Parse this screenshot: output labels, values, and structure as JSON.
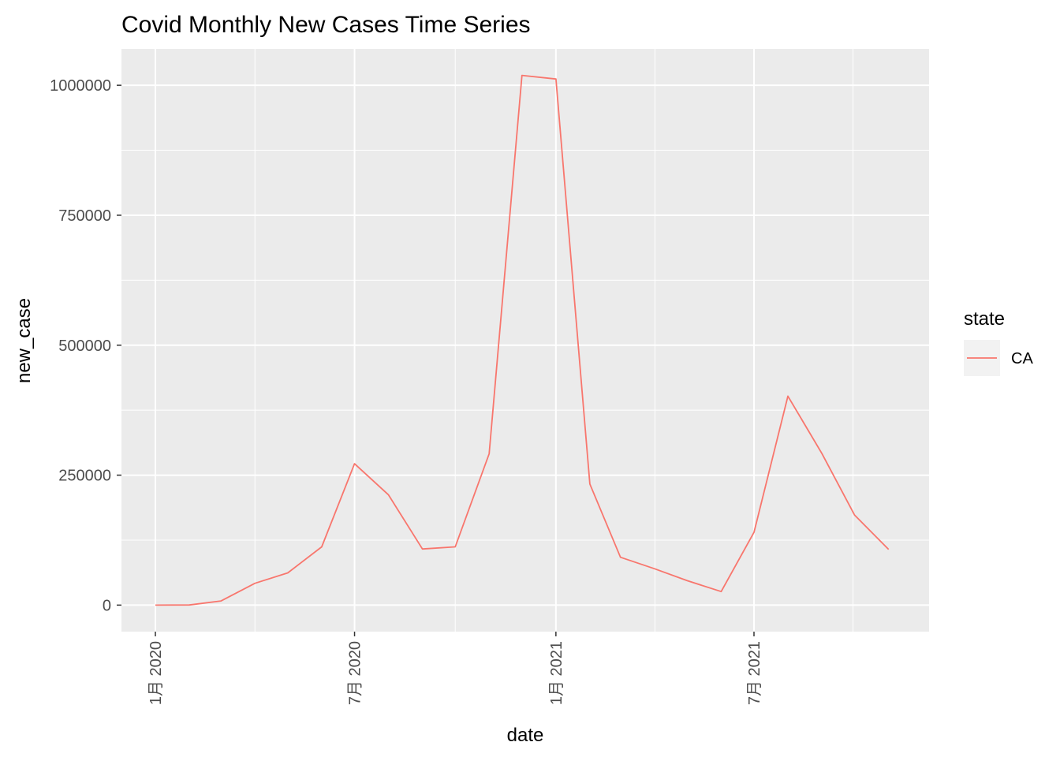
{
  "chart_data": {
    "type": "line",
    "title": "Covid Monthly New Cases Time Series",
    "xlabel": "date",
    "ylabel": "new_case",
    "x_tick_labels": [
      "1月 2020",
      "7月 2020",
      "1月 2021",
      "7月 2021"
    ],
    "x_tick_dates": [
      "2020-01-01",
      "2020-07-01",
      "2021-01-01",
      "2021-07-01"
    ],
    "y_ticks": [
      0,
      250000,
      500000,
      750000,
      1000000
    ],
    "y_tick_labels": [
      "0",
      "250000",
      "500000",
      "750000",
      "1000000"
    ],
    "xlim": [
      "2019-12-01",
      "2021-12-08"
    ],
    "ylim": [
      -51000,
      1070000
    ],
    "grid": true,
    "legend": {
      "title": "state",
      "position": "right"
    },
    "series": [
      {
        "name": "CA",
        "color": "#F8766D",
        "points": [
          {
            "x": "2020-01-01",
            "y": 0
          },
          {
            "x": "2020-02-01",
            "y": 200
          },
          {
            "x": "2020-03-01",
            "y": 8000
          },
          {
            "x": "2020-04-01",
            "y": 42000
          },
          {
            "x": "2020-05-01",
            "y": 62000
          },
          {
            "x": "2020-06-01",
            "y": 112000
          },
          {
            "x": "2020-07-01",
            "y": 272000
          },
          {
            "x": "2020-08-01",
            "y": 212000
          },
          {
            "x": "2020-09-01",
            "y": 108000
          },
          {
            "x": "2020-10-01",
            "y": 112000
          },
          {
            "x": "2020-11-01",
            "y": 291000
          },
          {
            "x": "2020-12-01",
            "y": 1019000
          },
          {
            "x": "2021-01-01",
            "y": 1012000
          },
          {
            "x": "2021-02-01",
            "y": 233000
          },
          {
            "x": "2021-03-01",
            "y": 92000
          },
          {
            "x": "2021-04-01",
            "y": 70000
          },
          {
            "x": "2021-05-01",
            "y": 47000
          },
          {
            "x": "2021-06-01",
            "y": 26000
          },
          {
            "x": "2021-07-01",
            "y": 140000
          },
          {
            "x": "2021-08-01",
            "y": 402000
          },
          {
            "x": "2021-09-01",
            "y": 292000
          },
          {
            "x": "2021-10-01",
            "y": 173000
          },
          {
            "x": "2021-11-01",
            "y": 107000
          }
        ]
      }
    ]
  }
}
